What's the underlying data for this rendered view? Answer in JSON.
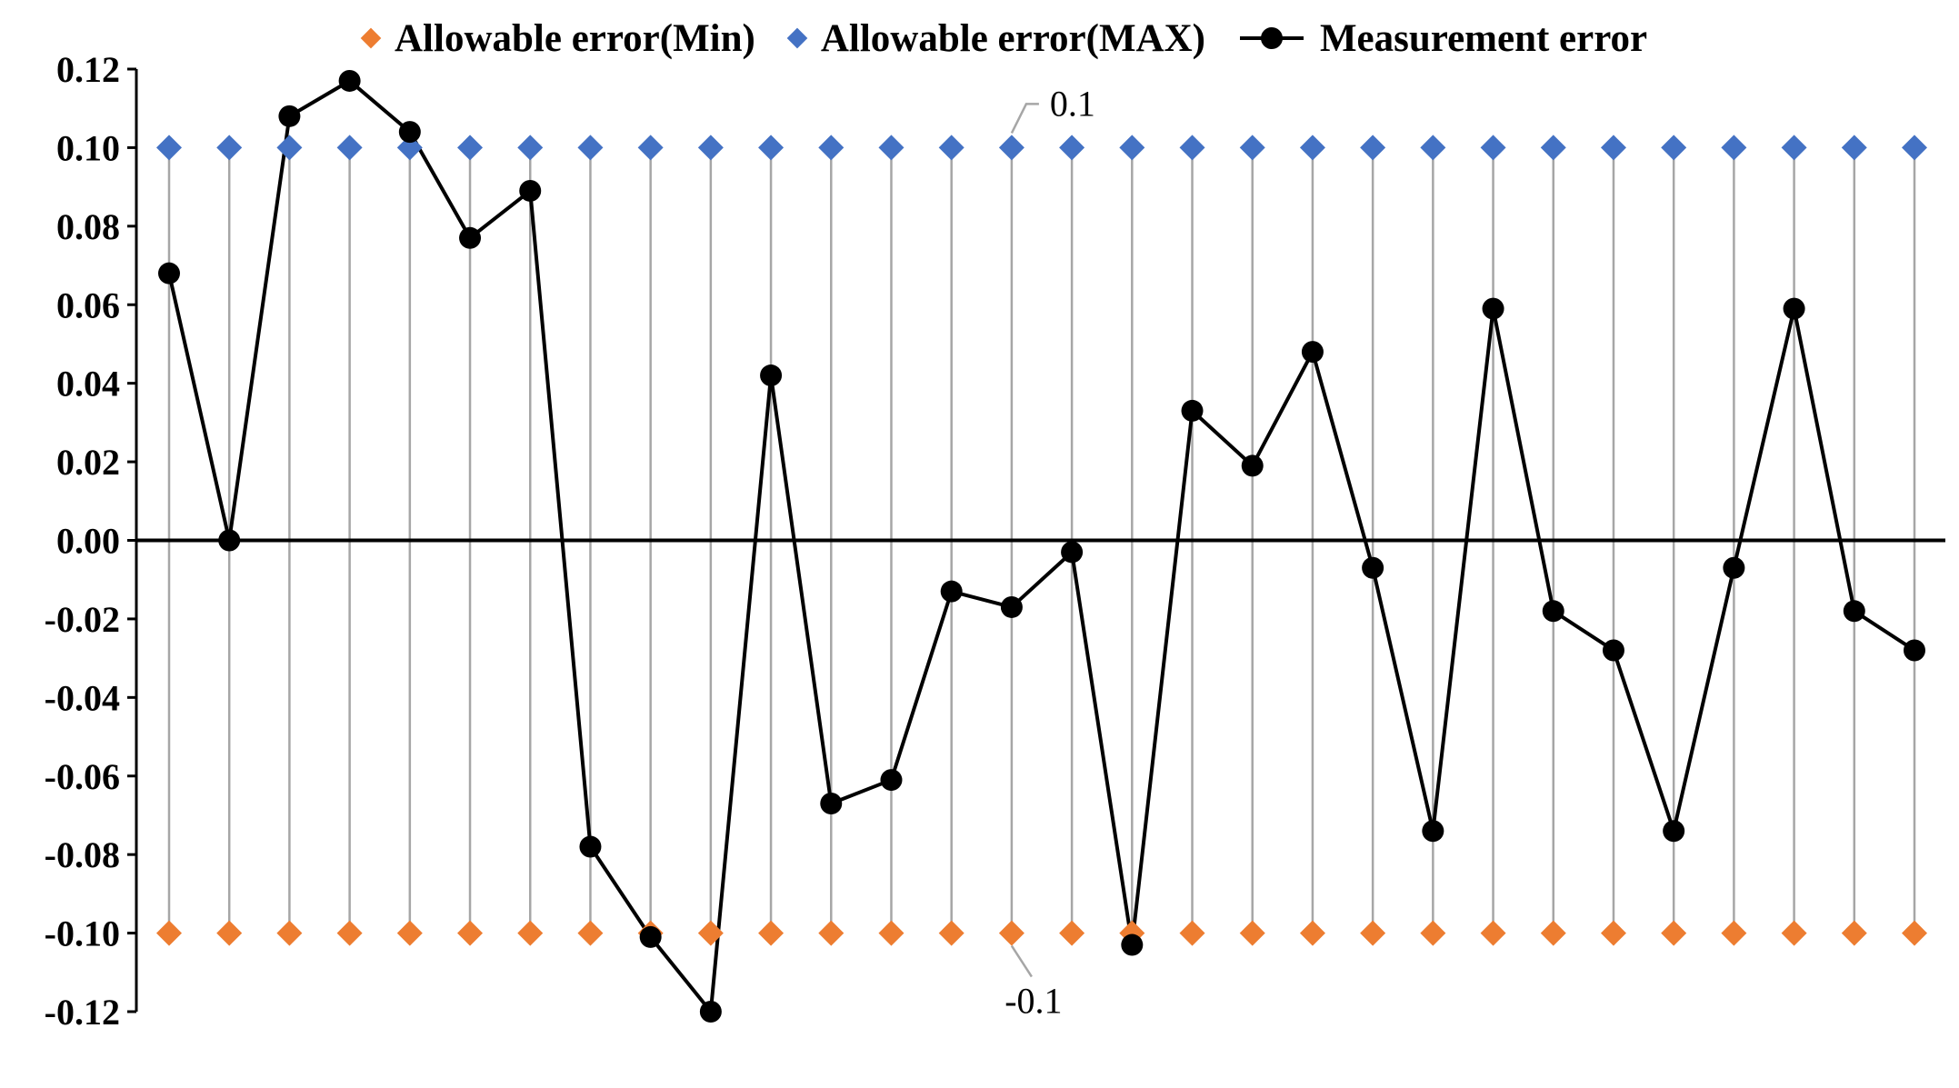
{
  "chart_data": {
    "type": "line",
    "title": "",
    "xlabel": "",
    "ylabel": "",
    "ylim": [
      -0.12,
      0.12
    ],
    "yticks": [
      "0.12",
      "0.10",
      "0.08",
      "0.06",
      "0.04",
      "0.02",
      "0.00",
      "-0.02",
      "-0.04",
      "-0.06",
      "-0.08",
      "-0.10",
      "-0.12"
    ],
    "ytick_values": [
      0.12,
      0.1,
      0.08,
      0.06,
      0.04,
      0.02,
      0.0,
      -0.02,
      -0.04,
      -0.06,
      -0.08,
      -0.1,
      -0.12
    ],
    "n_points": 30,
    "grid": "vertical",
    "legend_position": "top",
    "series": [
      {
        "name": "Allowable error(Min)",
        "style": "marker",
        "marker": "diamond",
        "color": "#ED7D31",
        "values": [
          -0.1,
          -0.1,
          -0.1,
          -0.1,
          -0.1,
          -0.1,
          -0.1,
          -0.1,
          -0.1,
          -0.1,
          -0.1,
          -0.1,
          -0.1,
          -0.1,
          -0.1,
          -0.1,
          -0.1,
          -0.1,
          -0.1,
          -0.1,
          -0.1,
          -0.1,
          -0.1,
          -0.1,
          -0.1,
          -0.1,
          -0.1,
          -0.1,
          -0.1,
          -0.1
        ]
      },
      {
        "name": "Allowable error(MAX)",
        "style": "marker",
        "marker": "diamond",
        "color": "#4472C4",
        "values": [
          0.1,
          0.1,
          0.1,
          0.1,
          0.1,
          0.1,
          0.1,
          0.1,
          0.1,
          0.1,
          0.1,
          0.1,
          0.1,
          0.1,
          0.1,
          0.1,
          0.1,
          0.1,
          0.1,
          0.1,
          0.1,
          0.1,
          0.1,
          0.1,
          0.1,
          0.1,
          0.1,
          0.1,
          0.1,
          0.1
        ]
      },
      {
        "name": "Measurement error",
        "style": "line-marker",
        "marker": "circle",
        "color": "#000000",
        "values": [
          0.068,
          0.0,
          0.108,
          0.117,
          0.104,
          0.077,
          0.089,
          -0.078,
          -0.101,
          -0.12,
          0.042,
          -0.067,
          -0.061,
          -0.013,
          -0.017,
          -0.003,
          -0.103,
          0.033,
          0.019,
          0.048,
          -0.007,
          -0.074,
          0.059,
          -0.018,
          -0.028,
          -0.074,
          -0.007,
          0.059,
          -0.018,
          -0.028
        ]
      }
    ],
    "annotations": [
      {
        "text": "0.1",
        "series": "Allowable error(MAX)",
        "point_index": 14,
        "value": 0.1
      },
      {
        "text": "-0.1",
        "series": "Allowable error(Min)",
        "point_index": 14,
        "value": -0.1
      }
    ]
  }
}
